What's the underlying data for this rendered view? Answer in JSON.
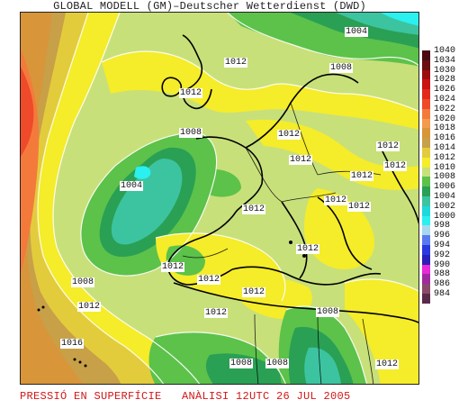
{
  "title": "GLOBAL MODELL (GM)–Deutscher Wetterdienst (DWD)",
  "caption": "PRESSIÓ EN SUPERFÍCIE   ANÀLISI 12UTC 26 JUL 2005",
  "isobar_labels": [
    {
      "text": "1004",
      "area": "north-sea-top"
    },
    {
      "text": "1008",
      "area": "scandinavia"
    },
    {
      "text": "1012",
      "area": "north-sea"
    },
    {
      "text": "1012",
      "area": "scotland"
    },
    {
      "text": "1008",
      "area": "ireland"
    },
    {
      "text": "1012",
      "area": "germany"
    },
    {
      "text": "1012",
      "area": "poland"
    },
    {
      "text": "1012",
      "area": "russia"
    },
    {
      "text": "1004",
      "area": "atlantic-low"
    },
    {
      "text": "1012",
      "area": "alps"
    },
    {
      "text": "1012",
      "area": "balkans"
    },
    {
      "text": "1012",
      "area": "hungary"
    },
    {
      "text": "1012",
      "area": "biscay"
    },
    {
      "text": "1012",
      "area": "adriatic"
    },
    {
      "text": "1008",
      "area": "atlantic-west"
    },
    {
      "text": "1012",
      "area": "iberia"
    },
    {
      "text": "1012",
      "area": "portugal-coast"
    },
    {
      "text": "1012",
      "area": "morocco"
    },
    {
      "text": "1012",
      "area": "algeria"
    },
    {
      "text": "1012",
      "area": "atlantic-south"
    },
    {
      "text": "1008",
      "area": "libya"
    },
    {
      "text": "1016",
      "area": "azores"
    },
    {
      "text": "1008",
      "area": "sahara-west"
    },
    {
      "text": "1008",
      "area": "sahara-mid"
    },
    {
      "text": "1012",
      "area": "egypt"
    }
  ],
  "legend": [
    {
      "value": "1040",
      "color": "#4a0c12"
    },
    {
      "value": "1034",
      "color": "#6a1010"
    },
    {
      "value": "1030",
      "color": "#9c0e0e"
    },
    {
      "value": "1028",
      "color": "#c81414"
    },
    {
      "value": "1026",
      "color": "#e22a1c"
    },
    {
      "value": "1024",
      "color": "#ef4a2a"
    },
    {
      "value": "1022",
      "color": "#f47a3c"
    },
    {
      "value": "1020",
      "color": "#f59a4c"
    },
    {
      "value": "1018",
      "color": "#d9953a"
    },
    {
      "value": "1016",
      "color": "#c8a048"
    },
    {
      "value": "1014",
      "color": "#e3cc3c"
    },
    {
      "value": "1012",
      "color": "#f5ec2a"
    },
    {
      "value": "1010",
      "color": "#c8e07a"
    },
    {
      "value": "1008",
      "color": "#5cc24a"
    },
    {
      "value": "1006",
      "color": "#2aa054"
    },
    {
      "value": "1004",
      "color": "#3cc4a0"
    },
    {
      "value": "1002",
      "color": "#1ed8dc"
    },
    {
      "value": "1000",
      "color": "#2af0f0"
    },
    {
      "value": "998",
      "color": "#a8d8f0"
    },
    {
      "value": "996",
      "color": "#5a7af0"
    },
    {
      "value": "994",
      "color": "#2a3ae0"
    },
    {
      "value": "992",
      "color": "#2a20b8"
    },
    {
      "value": "990",
      "color": "#e82ad8"
    },
    {
      "value": "988",
      "color": "#a02aa0"
    },
    {
      "value": "986",
      "color": "#8a4a6a"
    },
    {
      "value": "984",
      "color": "#5a2a4a"
    }
  ]
}
